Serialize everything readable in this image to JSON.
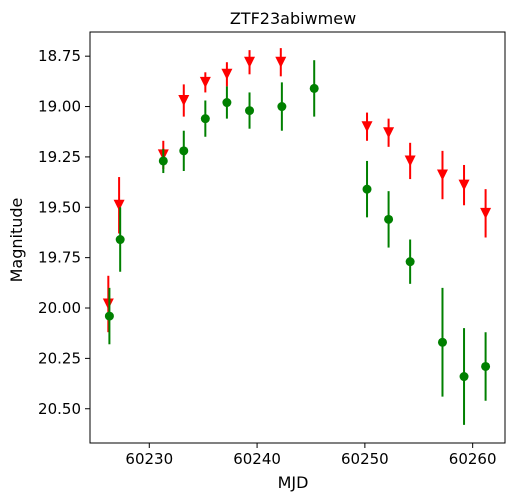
{
  "chart_data": {
    "type": "scatter",
    "title": "ZTF23abiwmew",
    "xlabel": "MJD",
    "ylabel": "Magnitude",
    "xlim": [
      60224.5,
      60263.0
    ],
    "ylim": [
      20.67,
      18.63
    ],
    "y_inverted": true,
    "grid": false,
    "x_ticks": [
      60230,
      60240,
      60250,
      60260
    ],
    "y_ticks": [
      18.75,
      19.0,
      19.25,
      19.5,
      19.75,
      20.0,
      20.25,
      20.5
    ],
    "y_tick_labels": [
      "18.75",
      "19.00",
      "19.25",
      "19.50",
      "19.75",
      "20.00",
      "20.25",
      "20.50"
    ],
    "series": [
      {
        "color": "#ff0000",
        "marker": "triangle-down",
        "points": [
          {
            "x": 60226.2,
            "y": 19.98,
            "err": 0.14
          },
          {
            "x": 60227.2,
            "y": 19.49,
            "err": 0.14
          },
          {
            "x": 60231.3,
            "y": 19.24,
            "err": 0.07
          },
          {
            "x": 60233.2,
            "y": 18.97,
            "err": 0.08
          },
          {
            "x": 60235.2,
            "y": 18.88,
            "err": 0.05
          },
          {
            "x": 60237.2,
            "y": 18.84,
            "err": 0.06
          },
          {
            "x": 60239.3,
            "y": 18.78,
            "err": 0.06
          },
          {
            "x": 60242.2,
            "y": 18.78,
            "err": 0.07
          },
          {
            "x": 60250.2,
            "y": 19.1,
            "err": 0.07
          },
          {
            "x": 60252.2,
            "y": 19.13,
            "err": 0.07
          },
          {
            "x": 60254.2,
            "y": 19.27,
            "err": 0.09
          },
          {
            "x": 60257.2,
            "y": 19.34,
            "err": 0.12
          },
          {
            "x": 60259.2,
            "y": 19.39,
            "err": 0.1
          },
          {
            "x": 60261.2,
            "y": 19.53,
            "err": 0.12
          }
        ]
      },
      {
        "color": "#008000",
        "marker": "circle",
        "points": [
          {
            "x": 60226.3,
            "y": 20.04,
            "err": 0.14
          },
          {
            "x": 60227.3,
            "y": 19.66,
            "err": 0.16
          },
          {
            "x": 60231.3,
            "y": 19.27,
            "err": 0.06
          },
          {
            "x": 60233.2,
            "y": 19.22,
            "err": 0.1
          },
          {
            "x": 60235.2,
            "y": 19.06,
            "err": 0.09
          },
          {
            "x": 60237.2,
            "y": 18.98,
            "err": 0.08
          },
          {
            "x": 60239.3,
            "y": 19.02,
            "err": 0.09
          },
          {
            "x": 60242.3,
            "y": 19.0,
            "err": 0.12
          },
          {
            "x": 60245.3,
            "y": 18.91,
            "err": 0.14
          },
          {
            "x": 60250.2,
            "y": 19.41,
            "err": 0.14
          },
          {
            "x": 60252.2,
            "y": 19.56,
            "err": 0.14
          },
          {
            "x": 60254.2,
            "y": 19.77,
            "err": 0.11
          },
          {
            "x": 60257.2,
            "y": 20.17,
            "err": 0.27
          },
          {
            "x": 60259.2,
            "y": 20.34,
            "err": 0.24
          },
          {
            "x": 60261.2,
            "y": 20.29,
            "err": 0.17
          }
        ]
      }
    ]
  }
}
